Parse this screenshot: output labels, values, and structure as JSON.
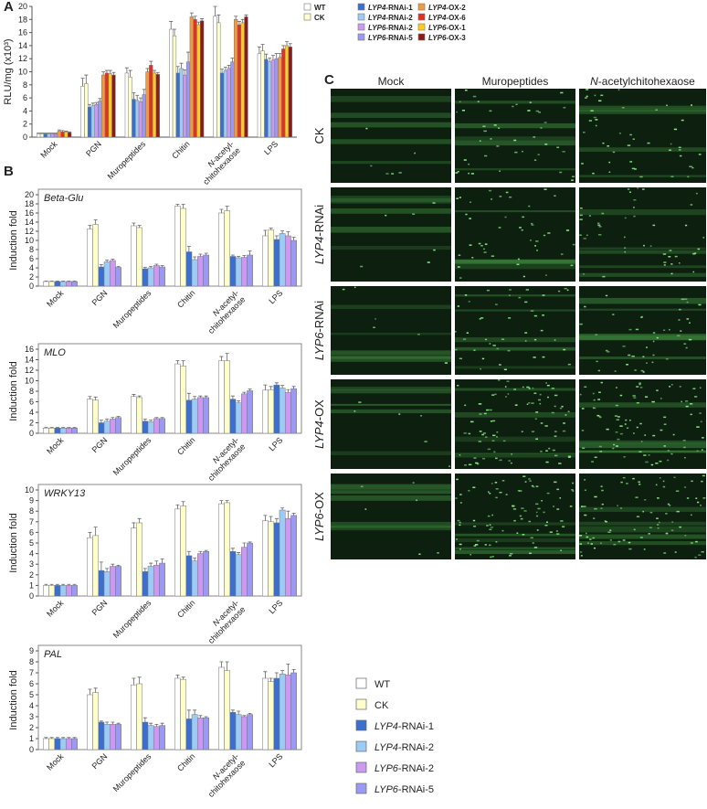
{
  "chart_data": [
    {
      "type": "bar",
      "panel_label": "A",
      "ylabel": "RLU/mg (x10³)",
      "categories": [
        "Mock",
        "PGN",
        "Muropeptides",
        "Chitin",
        "N-acetyl-chitohexaose",
        "LPS"
      ],
      "ylim": [
        0,
        20
      ],
      "yticks": [
        0,
        2,
        4,
        6,
        8,
        10,
        12,
        14,
        16,
        18,
        20
      ],
      "series": [
        {
          "name": "WT",
          "color": "#ffffff",
          "values": [
            0.5,
            7.8,
            9.8,
            16.5,
            18.5,
            12.8
          ],
          "errors": [
            0.1,
            1.2,
            0.8,
            1.2,
            1.5,
            1.0
          ]
        },
        {
          "name": "CK",
          "color": "#ffffcc",
          "values": [
            0.5,
            8.2,
            9.2,
            15.5,
            17.5,
            13.2
          ],
          "errors": [
            0.1,
            1.3,
            1.0,
            1.0,
            1.2,
            1.0
          ]
        },
        {
          "name": "LYP4-RNAi-1",
          "color": "#3a6fd0",
          "values": [
            0.5,
            4.6,
            5.8,
            9.8,
            9.8,
            11.9
          ],
          "errors": [
            0.1,
            0.4,
            1.0,
            1.0,
            0.6,
            0.8
          ]
        },
        {
          "name": "LYP4-RNAi-2",
          "color": "#9cccf5",
          "values": [
            0.5,
            4.8,
            5.6,
            10.5,
            10.2,
            11.5
          ],
          "errors": [
            0.1,
            0.4,
            0.8,
            0.8,
            0.5,
            0.6
          ]
        },
        {
          "name": "LYP6-RNAi-2",
          "color": "#cc99f0",
          "values": [
            0.5,
            5.0,
            5.4,
            9.5,
            10.5,
            11.8
          ],
          "errors": [
            0.1,
            0.3,
            0.6,
            0.8,
            0.5,
            0.7
          ]
        },
        {
          "name": "LYP6-RNAi-5",
          "color": "#9a9af5",
          "values": [
            0.5,
            5.5,
            6.5,
            11.5,
            11.5,
            12.0
          ],
          "errors": [
            0.1,
            0.4,
            0.8,
            1.5,
            0.6,
            0.8
          ]
        },
        {
          "name": "LYP4-OX-2",
          "color": "#f59a3c",
          "values": [
            0.9,
            9.5,
            10.0,
            18.4,
            18.0,
            12.2
          ],
          "errors": [
            0.2,
            0.5,
            0.5,
            0.6,
            0.5,
            0.6
          ]
        },
        {
          "name": "LYP4-OX-6",
          "color": "#e4301e",
          "values": [
            0.8,
            9.8,
            11.0,
            18.0,
            17.2,
            13.5
          ],
          "errors": [
            0.2,
            0.4,
            0.6,
            0.5,
            0.5,
            0.5
          ]
        },
        {
          "name": "LYP6-OX-1",
          "color": "#ffcc22",
          "values": [
            0.8,
            9.7,
            9.8,
            17.2,
            17.5,
            14.0
          ],
          "errors": [
            0.1,
            0.5,
            0.4,
            0.4,
            0.5,
            0.6
          ]
        },
        {
          "name": "LYP6-OX-3",
          "color": "#8b1a1a",
          "values": [
            0.7,
            9.5,
            9.6,
            17.8,
            18.4,
            13.8
          ],
          "errors": [
            0.1,
            0.4,
            0.3,
            0.3,
            0.3,
            0.5
          ]
        }
      ]
    },
    {
      "type": "bar",
      "panel_label": "B",
      "title": "Beta-Glu",
      "ylabel": "Induction fold",
      "categories": [
        "Mock",
        "PGN",
        "Muropeptides",
        "Chitin",
        "N-acetyl-chitohexaose",
        "LPS"
      ],
      "ylim": [
        0,
        20
      ],
      "yticks": [
        0,
        2,
        4,
        6,
        8,
        10,
        12,
        14,
        16,
        18,
        20
      ],
      "series": [
        {
          "name": "WT",
          "color": "#ffffff",
          "values": [
            1,
            12.5,
            13.2,
            17.5,
            16.0,
            11.0
          ],
          "errors": [
            0.1,
            0.8,
            0.6,
            0.4,
            0.8,
            1.2
          ]
        },
        {
          "name": "CK",
          "color": "#ffffcc",
          "values": [
            1,
            13.5,
            12.8,
            17.0,
            16.5,
            12.3
          ],
          "errors": [
            0.1,
            1.0,
            0.5,
            0.9,
            1.0,
            0.4
          ]
        },
        {
          "name": "LYP4-RNAi-1",
          "color": "#3a6fd0",
          "values": [
            1,
            4.2,
            3.8,
            7.5,
            6.5,
            10.2
          ],
          "errors": [
            0.1,
            0.5,
            0.3,
            1.2,
            0.3,
            0.8
          ]
        },
        {
          "name": "LYP4-RNAi-2",
          "color": "#9cccf5",
          "values": [
            1,
            5.3,
            4.0,
            5.8,
            6.2,
            11.5
          ],
          "errors": [
            0.1,
            0.4,
            0.3,
            0.6,
            0.3,
            0.6
          ]
        },
        {
          "name": "LYP6-RNAi-2",
          "color": "#cc99f0",
          "values": [
            1,
            5.6,
            4.5,
            6.5,
            6.3,
            11.0
          ],
          "errors": [
            0.1,
            0.3,
            0.3,
            0.5,
            0.4,
            0.9
          ]
        },
        {
          "name": "LYP6-RNAi-5",
          "color": "#9a9af5",
          "values": [
            1,
            4.1,
            4.2,
            6.8,
            6.8,
            10.0
          ],
          "errors": [
            0.1,
            0.2,
            0.3,
            0.4,
            0.9,
            0.7
          ]
        }
      ]
    },
    {
      "type": "bar",
      "title": "MLO",
      "ylabel": "Induction fold",
      "categories": [
        "Mock",
        "PGN",
        "Muropeptides",
        "Chitin",
        "N-acetyl-chitohexaose",
        "LPS"
      ],
      "ylim": [
        0,
        16
      ],
      "yticks": [
        0,
        2,
        4,
        6,
        8,
        10,
        12,
        14,
        16
      ],
      "series": [
        {
          "values": [
            1,
            6.5,
            7.0,
            13.2,
            13.8,
            8.2
          ],
          "errors": [
            0.1,
            0.5,
            0.4,
            0.6,
            0.8,
            1.0
          ]
        },
        {
          "values": [
            1,
            6.3,
            6.8,
            12.8,
            13.8,
            8.3
          ],
          "errors": [
            0.1,
            0.6,
            0.3,
            1.0,
            1.4,
            0.6
          ]
        },
        {
          "values": [
            1,
            2.0,
            2.3,
            6.3,
            6.5,
            9.2
          ],
          "errors": [
            0.1,
            0.5,
            0.4,
            1.3,
            0.6,
            0.4
          ]
        },
        {
          "values": [
            1,
            2.3,
            2.2,
            6.5,
            5.8,
            8.6
          ],
          "errors": [
            0.1,
            0.4,
            0.3,
            0.5,
            0.4,
            0.5
          ]
        },
        {
          "values": [
            1,
            2.7,
            2.8,
            6.8,
            7.5,
            7.8
          ],
          "errors": [
            0.1,
            0.3,
            0.2,
            0.3,
            0.3,
            0.5
          ]
        },
        {
          "values": [
            1,
            3.0,
            2.8,
            6.8,
            8.1,
            8.5
          ],
          "errors": [
            0.1,
            0.2,
            0.2,
            0.3,
            0.3,
            0.4
          ]
        }
      ]
    },
    {
      "type": "bar",
      "title": "WRKY13",
      "ylabel": "Induction fold",
      "categories": [
        "Mock",
        "PGN",
        "Muropeptides",
        "Chitin",
        "N-acetyl-chitohexaose",
        "LPS"
      ],
      "ylim": [
        0,
        10
      ],
      "yticks": [
        0,
        1,
        2,
        3,
        4,
        5,
        6,
        7,
        8,
        9,
        10
      ],
      "series": [
        {
          "values": [
            1,
            5.5,
            6.4,
            8.2,
            8.7,
            7.1
          ],
          "errors": [
            0.1,
            0.5,
            0.5,
            0.4,
            0.3,
            0.5
          ]
        },
        {
          "values": [
            1,
            5.7,
            6.9,
            8.5,
            8.8,
            7.0
          ],
          "errors": [
            0.1,
            0.8,
            0.4,
            0.4,
            0.2,
            0.5
          ]
        },
        {
          "values": [
            1,
            2.4,
            2.3,
            3.8,
            4.2,
            6.9
          ],
          "errors": [
            0.1,
            0.8,
            0.3,
            0.4,
            0.3,
            0.4
          ]
        },
        {
          "values": [
            1,
            2.3,
            2.8,
            3.3,
            3.9,
            8.1
          ],
          "errors": [
            0.1,
            0.3,
            0.3,
            0.3,
            0.2,
            0.2
          ]
        },
        {
          "values": [
            1,
            2.8,
            2.9,
            4.0,
            4.6,
            7.3
          ],
          "errors": [
            0.1,
            0.2,
            0.4,
            0.2,
            0.4,
            0.7
          ]
        },
        {
          "values": [
            1,
            2.8,
            3.1,
            4.2,
            5.0,
            7.6
          ],
          "errors": [
            0.1,
            0.1,
            0.4,
            0.1,
            0.1,
            0.2
          ]
        }
      ]
    },
    {
      "type": "bar",
      "title": "PAL",
      "ylabel": "Induction fold",
      "categories": [
        "Mock",
        "PGN",
        "Muropeptides",
        "Chitin",
        "N-acetyl-chitohexaose",
        "LPS"
      ],
      "ylim": [
        0,
        9
      ],
      "yticks": [
        0,
        1,
        2,
        3,
        4,
        5,
        6,
        7,
        8,
        9
      ],
      "series": [
        {
          "values": [
            1,
            5.0,
            5.9,
            6.5,
            7.5,
            6.5
          ],
          "errors": [
            0.1,
            0.5,
            0.6,
            0.3,
            0.5,
            0.6
          ]
        },
        {
          "values": [
            1,
            5.2,
            6.0,
            6.4,
            7.2,
            6.2
          ],
          "errors": [
            0.1,
            0.4,
            0.6,
            0.2,
            0.8,
            0.3
          ]
        },
        {
          "values": [
            1,
            2.5,
            2.5,
            2.8,
            3.4,
            6.5
          ],
          "errors": [
            0.1,
            0.1,
            0.4,
            0.8,
            0.2,
            0.5
          ]
        },
        {
          "values": [
            1,
            2.3,
            2.2,
            3.2,
            3.2,
            6.9
          ],
          "errors": [
            0.1,
            0.2,
            0.2,
            0.4,
            0.3,
            0.3
          ]
        },
        {
          "values": [
            1,
            2.3,
            2.1,
            2.9,
            3.0,
            6.8
          ],
          "errors": [
            0.1,
            0.2,
            0.2,
            0.2,
            0.1,
            1.0
          ]
        },
        {
          "values": [
            1,
            2.3,
            2.2,
            2.9,
            3.2,
            7.0
          ],
          "errors": [
            0.1,
            0.1,
            0.2,
            0.1,
            0.1,
            0.3
          ]
        }
      ]
    }
  ],
  "image_panel": {
    "label": "C",
    "columns": [
      "Mock",
      "Muropeptides",
      "N-acetylchitohexaose"
    ],
    "rows": [
      "CK",
      "LYP4-RNAi",
      "LYP6-RNAi",
      "LYP4-OX",
      "LYP6-OX"
    ]
  }
}
